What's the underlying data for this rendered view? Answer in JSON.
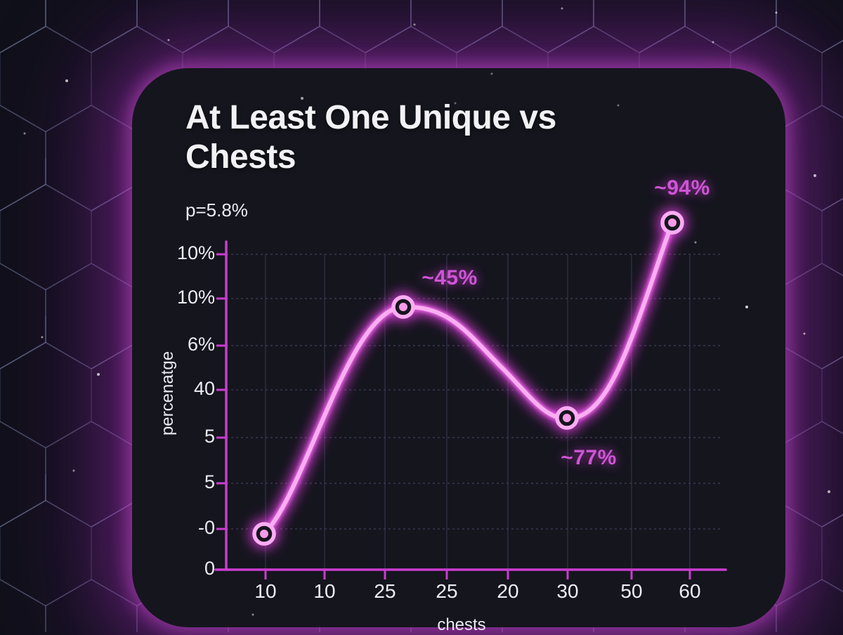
{
  "chart_data": {
    "type": "line",
    "title": "At Least One Unique vs Chests",
    "subtitle": "p=5.8%",
    "xlabel": "chests",
    "ylabel": "percenatge",
    "x_tick_labels": [
      "10",
      "10",
      "25",
      "25",
      "20",
      "30",
      "50",
      "60"
    ],
    "y_tick_labels_top_to_bottom": [
      "10%",
      "10%",
      "6%",
      "40",
      "5",
      "5",
      "-0",
      "0"
    ],
    "grid": true,
    "legend": false,
    "series": [
      {
        "name": "at least one unique",
        "points": [
          {
            "x_tick": "10",
            "label": null
          },
          {
            "x_tick": "25",
            "label": "~45%"
          },
          {
            "x_tick": "30",
            "label": "~77%"
          },
          {
            "x_tick": "60",
            "label": "~94%"
          }
        ]
      }
    ],
    "annotations": [
      "~45%",
      "~77%",
      "~94%"
    ]
  },
  "colors": {
    "line": "#fcadf2",
    "line_glow": "#dd3add",
    "line_mid_glow": "#f070ea",
    "axis": "#cb3ccf",
    "annotation_text": "#cf55d6",
    "tick_text": "#eceef4",
    "title_text": "#f2f2f6",
    "card_background": "#15151e",
    "page_background": "#10101a",
    "grid_line": "#3f3f58"
  }
}
